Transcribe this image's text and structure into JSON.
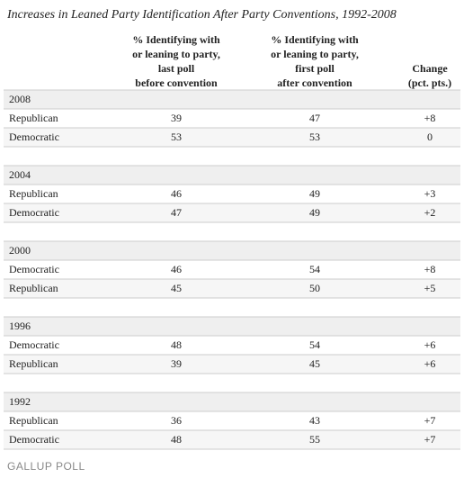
{
  "title": "Increases in Leaned Party Identification After Party Conventions, 1992-2008",
  "columns": [
    [
      "% Identifying with",
      "or leaning to party,",
      "last poll",
      "before convention"
    ],
    [
      "% Identifying with",
      "or leaning  to party,",
      "first poll",
      "after convention"
    ],
    [
      "Change",
      "(pct. pts.)"
    ]
  ],
  "groups": [
    {
      "year": "2008",
      "rows": [
        [
          "Republican",
          39,
          47,
          "+8"
        ],
        [
          "Democratic",
          53,
          53,
          "0"
        ]
      ]
    },
    {
      "year": "2004",
      "rows": [
        [
          "Republican",
          46,
          49,
          "+3"
        ],
        [
          "Democratic",
          47,
          49,
          "+2"
        ]
      ]
    },
    {
      "year": "2000",
      "rows": [
        [
          "Democratic",
          46,
          54,
          "+8"
        ],
        [
          "Republican",
          45,
          50,
          "+5"
        ]
      ]
    },
    {
      "year": "1996",
      "rows": [
        [
          "Democratic",
          48,
          54,
          "+6"
        ],
        [
          "Republican",
          39,
          45,
          "+6"
        ]
      ]
    },
    {
      "year": "1992",
      "rows": [
        [
          "Republican",
          36,
          43,
          "+7"
        ],
        [
          "Democratic",
          48,
          55,
          "+7"
        ]
      ]
    }
  ],
  "footer": "GALLUP POLL"
}
